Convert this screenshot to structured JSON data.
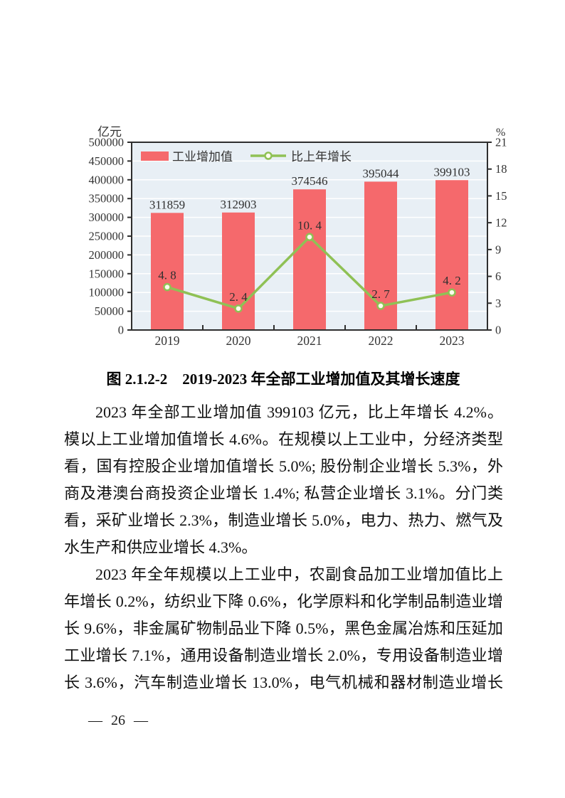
{
  "page": {
    "footer_page_number": "— 26 —"
  },
  "figure": {
    "caption": "图 2.1.2-2　2019-2023 年全部工业增加值及其增长速度"
  },
  "chart_data": {
    "type": "bar+line",
    "categories": [
      "2019",
      "2020",
      "2021",
      "2022",
      "2023"
    ],
    "series": [
      {
        "name": "工业增加值",
        "type": "bar",
        "axis": "left",
        "values": [
          311859,
          312903,
          374546,
          395044,
          399103
        ],
        "point_labels": [
          "311859",
          "312903",
          "374546",
          "395044",
          "399103"
        ],
        "color": "#f5696c"
      },
      {
        "name": "比上年增长",
        "type": "line",
        "axis": "right",
        "values": [
          4.8,
          2.4,
          10.4,
          2.7,
          4.2
        ],
        "point_labels": [
          "4. 8",
          "2. 4",
          "10. 4",
          "2. 7",
          "4. 2"
        ],
        "color": "#8fc155",
        "marker_fill": "#fdfdee"
      }
    ],
    "left_axis": {
      "label": "亿元",
      "min": 0,
      "max": 500000,
      "step": 50000
    },
    "right_axis": {
      "label": "%",
      "min": 0,
      "max": 21,
      "step": 3
    },
    "legend_position": "top-left-inside",
    "grid": true,
    "plot_bg": "#e8eff5",
    "grid_color": "#ffffff",
    "frame_color": "#2e2e2e",
    "text_color": "#333333"
  },
  "paragraphs": [
    {
      "flush_last": true,
      "lines": [
        "2023 年全部工业增加值 399103 亿元，比上年增长 4.2%。规",
        "模以上工业增加值增长  4.6%。在规模以上工业中，分经济类型",
        "看，国有控股企业增加值增长 5.0%; 股份制企业增长 5.3%，外",
        "商及港澳台商投资企业增长 1.4%; 私营企业增长 3.1%。分门类",
        "看，采矿业增长 2.3%，制造业增长 5.0%，电力、热力、燃气及",
        "水生产和供应业增长 4.3%。"
      ]
    },
    {
      "flush_last": false,
      "lines": [
        "2023 年全年规模以上工业中，农副食品加工业增加值比上",
        "年增长 0.2%，纺织业下降 0.6%，化学原料和化学制品制造业增",
        "长 9.6%，非金属矿物制品业下降 0.5%，黑色金属冶炼和压延加",
        "工业增长 7.1%，通用设备制造业增长 2.0%，专用设备制造业增",
        "长 3.6%，汽车制造业增长 13.0%，电气机械和器材制造业增长"
      ]
    }
  ]
}
